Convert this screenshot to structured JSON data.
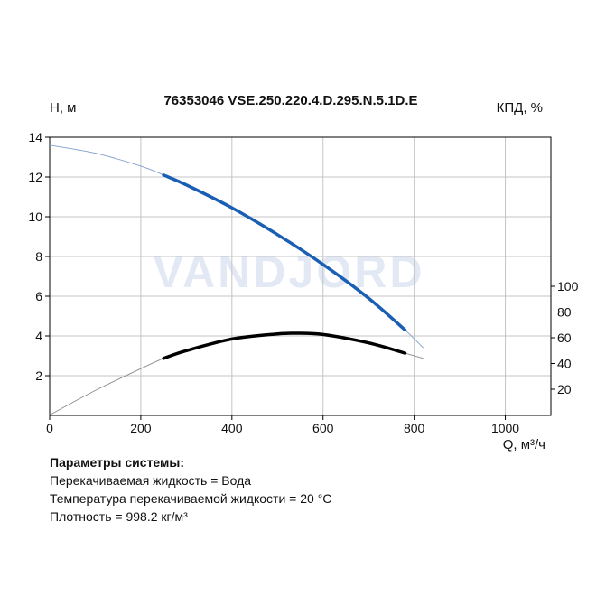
{
  "chart_data": {
    "type": "line",
    "title": "76353046 VSE.250.220.4.D.295.N.5.1D.E",
    "ylabel_left": "H, м",
    "ylabel_right": "КПД, %",
    "xlabel": "Q, м³/ч",
    "xlim": [
      0,
      1100
    ],
    "ylim_left": [
      0,
      14
    ],
    "x_ticks": [
      "0",
      "200",
      "400",
      "600",
      "800",
      "1000"
    ],
    "y_left_ticks": [
      "2",
      "4",
      "6",
      "8",
      "10",
      "12",
      "14"
    ],
    "y_right_ticks": [
      "20",
      "40",
      "60",
      "80",
      "100"
    ],
    "grid": true,
    "watermark": "VANDJORD",
    "series": [
      {
        "role": "head",
        "axis": "left",
        "color": "#1a5fb4",
        "full_range_x": [
          0,
          100,
          200,
          250,
          300,
          400,
          500,
          600,
          700,
          780,
          820
        ],
        "full_range_y": [
          13.6,
          13.2,
          12.55,
          12.1,
          11.6,
          10.45,
          9.1,
          7.6,
          5.9,
          4.3,
          3.4
        ],
        "operating_x": [
          250,
          300,
          400,
          500,
          600,
          700,
          780
        ],
        "operating_y": [
          12.1,
          11.6,
          10.45,
          9.1,
          7.6,
          5.9,
          4.3
        ]
      },
      {
        "role": "efficiency",
        "axis": "right",
        "color": "#000000",
        "full_range_x": [
          0,
          100,
          200,
          250,
          300,
          400,
          500,
          540,
          600,
          700,
          780,
          820
        ],
        "full_range_y": [
          0,
          19,
          36,
          44,
          50,
          59,
          63,
          63.5,
          62.5,
          56,
          48,
          44
        ],
        "operating_x": [
          250,
          300,
          400,
          500,
          540,
          600,
          700,
          780
        ],
        "operating_y": [
          44,
          50,
          59,
          63,
          63.5,
          62.5,
          56,
          48
        ]
      }
    ]
  },
  "params": {
    "title": "Параметры системы:",
    "liquid": "Перекачиваемая жидкость = Вода",
    "temperature": "Температура перекачиваемой жидкости = 20 °C",
    "density": "Плотность = 998.2 кг/м³"
  }
}
